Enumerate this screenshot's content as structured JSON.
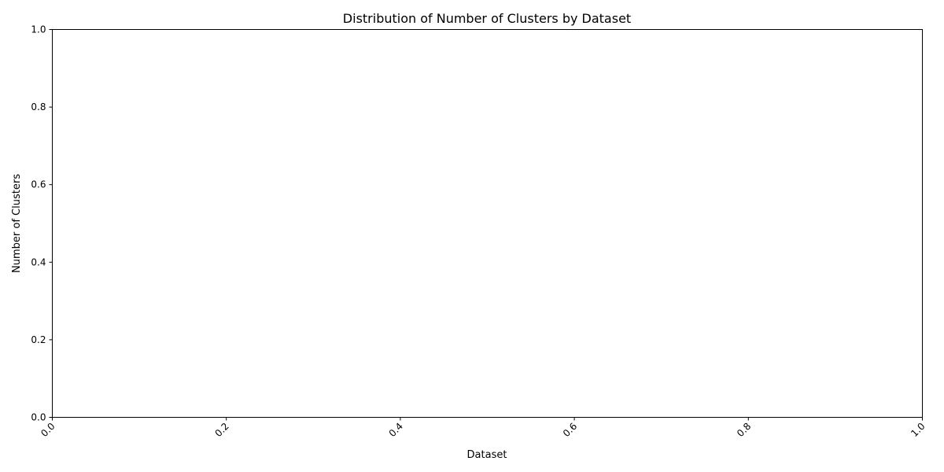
{
  "chart_data": {
    "type": "scatter",
    "title": "Distribution of Number of Clusters by Dataset",
    "xlabel": "Dataset",
    "ylabel": "Number of Clusters",
    "xlim": [
      0.0,
      1.0
    ],
    "ylim": [
      0.0,
      1.0
    ],
    "x_ticks": [
      "0.0",
      "0.2",
      "0.4",
      "0.6",
      "0.8",
      "1.0"
    ],
    "y_ticks": [
      "0.0",
      "0.2",
      "0.4",
      "0.6",
      "0.8",
      "1.0"
    ],
    "x_tick_rotation_deg": 45,
    "grid": false,
    "series": []
  }
}
